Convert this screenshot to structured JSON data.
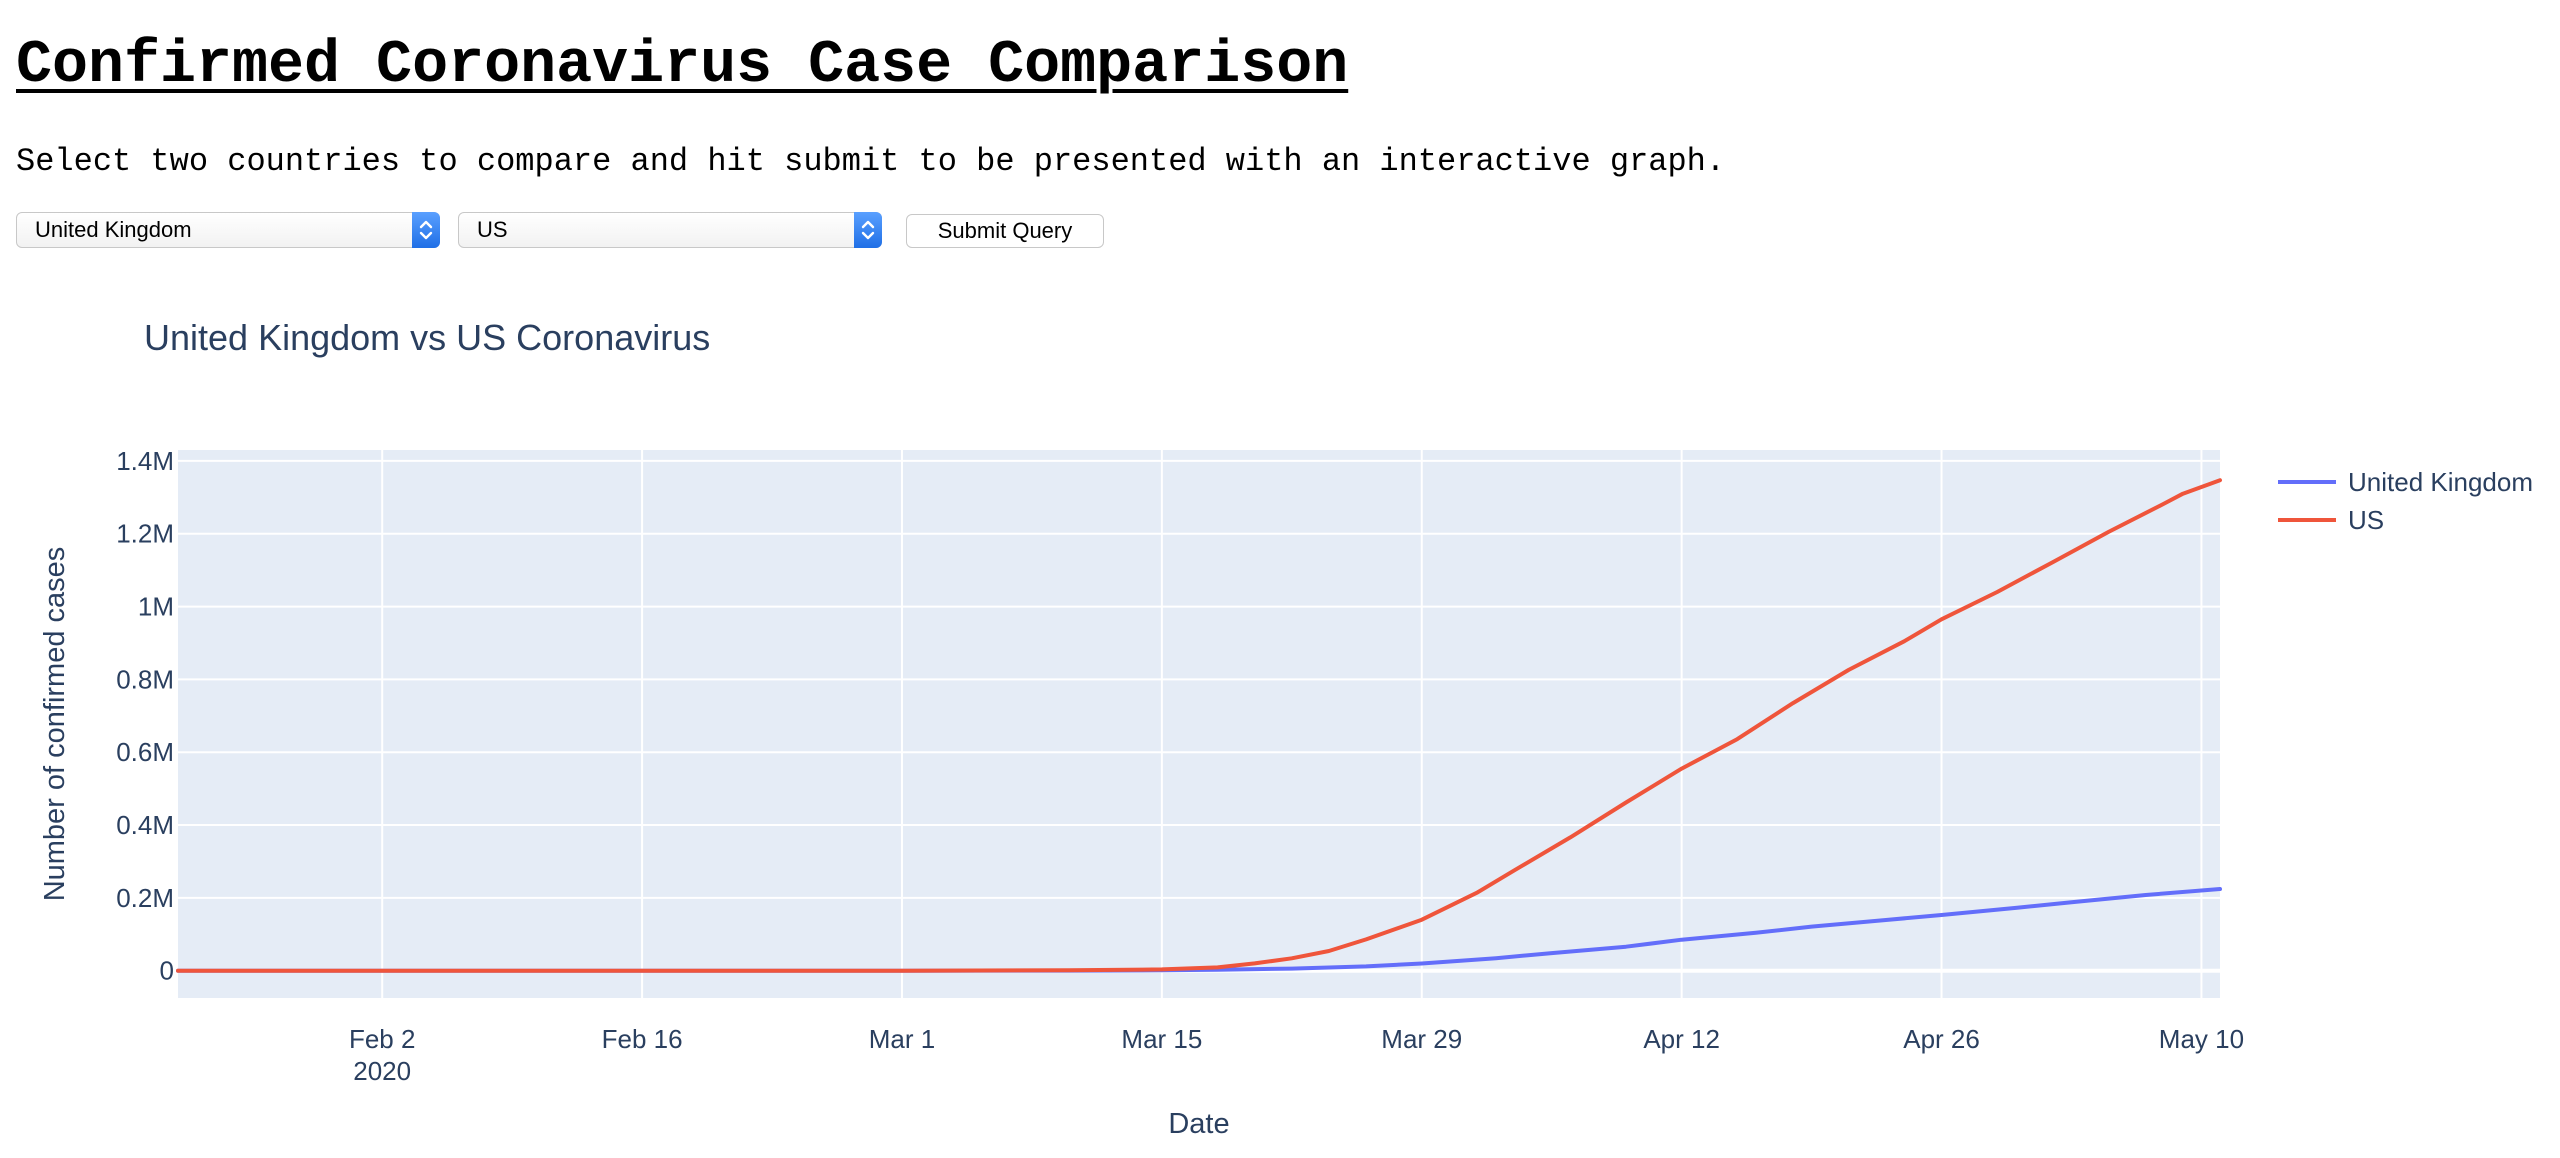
{
  "page": {
    "title": "Confirmed Coronavirus Case Comparison",
    "instructions": "Select two countries to compare and hit submit to be presented with an interactive graph."
  },
  "form": {
    "country1": "United Kingdom",
    "country2": "US",
    "submit_label": "Submit Query",
    "dropdown_icon": "updown-chevron-icon",
    "accent_color": "#2e7bef"
  },
  "chart_data": {
    "type": "line",
    "title": "United Kingdom vs US Coronavirus",
    "xlabel": "Date",
    "ylabel": "Number of confirmed cases",
    "xlim": [
      "2020-01-22",
      "2020-05-11"
    ],
    "ylim": [
      -75000,
      1430000
    ],
    "x_ticks": [
      {
        "date": "2020-02-02",
        "label": "Feb 2",
        "sublabel": "2020"
      },
      {
        "date": "2020-02-16",
        "label": "Feb 16"
      },
      {
        "date": "2020-03-01",
        "label": "Mar 1"
      },
      {
        "date": "2020-03-15",
        "label": "Mar 15"
      },
      {
        "date": "2020-03-29",
        "label": "Mar 29"
      },
      {
        "date": "2020-04-12",
        "label": "Apr 12"
      },
      {
        "date": "2020-04-26",
        "label": "Apr 26"
      },
      {
        "date": "2020-05-10",
        "label": "May 10"
      }
    ],
    "y_ticks": [
      {
        "value": 0,
        "label": "0"
      },
      {
        "value": 200000,
        "label": "0.2M"
      },
      {
        "value": 400000,
        "label": "0.4M"
      },
      {
        "value": 600000,
        "label": "0.6M"
      },
      {
        "value": 800000,
        "label": "0.8M"
      },
      {
        "value": 1000000,
        "label": "1M"
      },
      {
        "value": 1200000,
        "label": "1.2M"
      },
      {
        "value": 1400000,
        "label": "1.4M"
      }
    ],
    "grid": true,
    "legend_position": "right",
    "plot_background": "#e5ecf6",
    "series": [
      {
        "name": "United Kingdom",
        "color": "#636efa",
        "points": [
          [
            "2020-01-22",
            0
          ],
          [
            "2020-02-01",
            2
          ],
          [
            "2020-02-15",
            9
          ],
          [
            "2020-03-01",
            36
          ],
          [
            "2020-03-10",
            382
          ],
          [
            "2020-03-15",
            1144
          ],
          [
            "2020-03-18",
            2642
          ],
          [
            "2020-03-22",
            5741
          ],
          [
            "2020-03-26",
            11812
          ],
          [
            "2020-03-29",
            19780
          ],
          [
            "2020-04-02",
            34173
          ],
          [
            "2020-04-05",
            48440
          ],
          [
            "2020-04-09",
            65872
          ],
          [
            "2020-04-12",
            85206
          ],
          [
            "2020-04-16",
            104145
          ],
          [
            "2020-04-19",
            121172
          ],
          [
            "2020-04-23",
            139246
          ],
          [
            "2020-04-26",
            152840
          ],
          [
            "2020-04-30",
            172481
          ],
          [
            "2020-05-03",
            187842
          ],
          [
            "2020-05-07",
            207977
          ],
          [
            "2020-05-11",
            224332
          ]
        ]
      },
      {
        "name": "US",
        "color": "#ef553b",
        "points": [
          [
            "2020-01-22",
            1
          ],
          [
            "2020-02-01",
            8
          ],
          [
            "2020-02-15",
            15
          ],
          [
            "2020-03-01",
            74
          ],
          [
            "2020-03-10",
            1000
          ],
          [
            "2020-03-15",
            3500
          ],
          [
            "2020-03-18",
            9000
          ],
          [
            "2020-03-20",
            20000
          ],
          [
            "2020-03-22",
            34000
          ],
          [
            "2020-03-24",
            54000
          ],
          [
            "2020-03-26",
            86000
          ],
          [
            "2020-03-29",
            140000
          ],
          [
            "2020-04-01",
            215000
          ],
          [
            "2020-04-03",
            276000
          ],
          [
            "2020-04-06",
            366000
          ],
          [
            "2020-04-09",
            462000
          ],
          [
            "2020-04-12",
            555000
          ],
          [
            "2020-04-15",
            636000
          ],
          [
            "2020-04-18",
            735000
          ],
          [
            "2020-04-21",
            826000
          ],
          [
            "2020-04-24",
            905000
          ],
          [
            "2020-04-26",
            965000
          ],
          [
            "2020-04-29",
            1040000
          ],
          [
            "2020-05-02",
            1122000
          ],
          [
            "2020-05-05",
            1205000
          ],
          [
            "2020-05-08",
            1283000
          ],
          [
            "2020-05-09",
            1310000
          ],
          [
            "2020-05-11",
            1347000
          ]
        ]
      }
    ]
  }
}
